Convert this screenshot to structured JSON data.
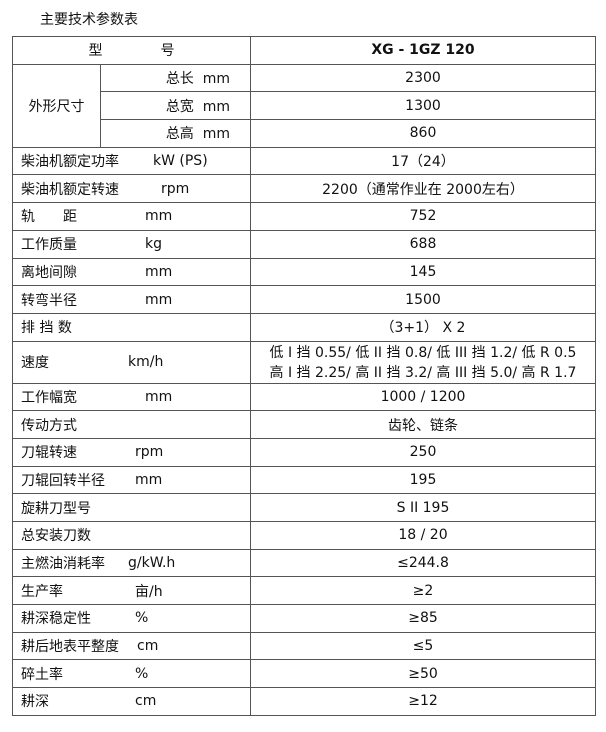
{
  "title": "主要技术参数表",
  "header": {
    "label_1": "型",
    "label_2": "号",
    "value": "XG - 1GZ 120"
  },
  "dimensions": {
    "group": "外形尺寸",
    "rows": [
      {
        "label": "总长  mm",
        "value": "2300"
      },
      {
        "label": "总宽  mm",
        "value": "1300"
      },
      {
        "label": "总高  mm",
        "value": "860"
      }
    ]
  },
  "rows": [
    {
      "label": "柴油机额定功率",
      "unit": "kW (PS)",
      "value": "17（24）"
    },
    {
      "label": "柴油机额定转速",
      "unit": "rpm",
      "value": "2200（通常作业在 2000左右）"
    },
    {
      "label": "轨　　距",
      "unit": "mm",
      "value": "752"
    },
    {
      "label": "工作质量",
      "unit": "kg",
      "value": "688"
    },
    {
      "label": "离地间隙",
      "unit": "mm",
      "value": "145"
    },
    {
      "label": "转弯半径",
      "unit": "mm",
      "value": "1500"
    },
    {
      "label": "排 挡 数",
      "unit": "",
      "value": "（3+1） X 2"
    },
    {
      "label": "速度",
      "unit": "km/h",
      "value": "低 I 挡 0.55/ 低 II 挡 0.8/ 低 III 挡 1.2/ 低 R 0.5",
      "value2": "高 I 挡 2.25/ 高 II 挡 3.2/ 高 III 挡 5.0/ 高 R 1.7"
    },
    {
      "label": "工作幅宽",
      "unit": "mm",
      "value": "1000 / 1200"
    },
    {
      "label": "传动方式",
      "unit": "",
      "value": "齿轮、链条"
    },
    {
      "label": "刀辊转速",
      "unit": "rpm",
      "value": "250"
    },
    {
      "label": "刀辊回转半径",
      "unit": "mm",
      "value": "195"
    },
    {
      "label": "旋耕刀型号",
      "unit": "",
      "value": "S II 195"
    },
    {
      "label": "总安装刀数",
      "unit": "",
      "value": "18 / 20"
    },
    {
      "label": "主燃油消耗率",
      "unit": "g/kW.h",
      "value": "≤244.8"
    },
    {
      "label": "生产率",
      "unit": "亩/h",
      "value": "≥2"
    },
    {
      "label": "耕深稳定性",
      "unit": "%",
      "value": "≥85"
    },
    {
      "label": "耕后地表平整度",
      "unit": "cm",
      "value": "≤5"
    },
    {
      "label": "碎土率",
      "unit": "%",
      "value": "≥50"
    },
    {
      "label": "耕深",
      "unit": "cm",
      "value": "≥12"
    }
  ]
}
